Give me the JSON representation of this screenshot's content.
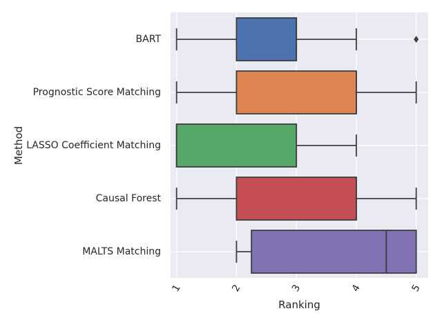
{
  "chart_data": {
    "type": "boxplot",
    "orientation": "horizontal",
    "xlabel": "Ranking",
    "ylabel": "Method",
    "xlim": [
      0.9,
      5.2
    ],
    "x_ticks": [
      1,
      2,
      3,
      4,
      5
    ],
    "grid": true,
    "categories": [
      "BART",
      "Prognostic Score Matching",
      "LASSO Coefficient Matching",
      "Causal Forest",
      "MALTS Matching"
    ],
    "boxes": [
      {
        "min": 1,
        "q1": 2,
        "median": 3,
        "q3": 3,
        "max": 4,
        "outliers": [
          5
        ],
        "color": "#4c72b0"
      },
      {
        "min": 1,
        "q1": 2,
        "median": 4,
        "q3": 4,
        "max": 5,
        "outliers": [],
        "color": "#dd8452"
      },
      {
        "min": 1,
        "q1": 1,
        "median": 1,
        "q3": 3,
        "max": 4,
        "outliers": [],
        "color": "#55a868"
      },
      {
        "min": 1,
        "q1": 2,
        "median": 4,
        "q3": 4,
        "max": 5,
        "outliers": [],
        "color": "#c44e52"
      },
      {
        "min": 2,
        "q1": 2.25,
        "median": 4.5,
        "q3": 5,
        "max": 5,
        "outliers": [],
        "color": "#8172b3"
      }
    ],
    "colors": {
      "background": "#eaeaf2",
      "grid": "#ffffff",
      "line": "#3d3d3d"
    }
  }
}
